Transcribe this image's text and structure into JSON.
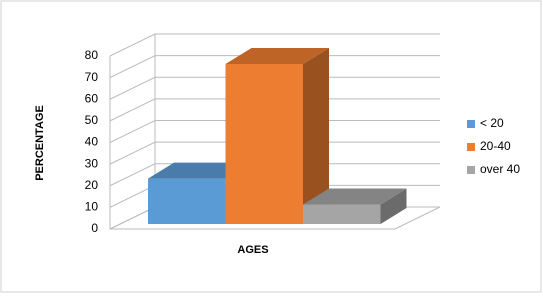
{
  "chart_data": {
    "type": "bar3d",
    "x_label": "AGES",
    "y_label": "PERCENTAGE",
    "categories": [
      null
    ],
    "series": [
      {
        "name": "< 20",
        "color": "#5b9bd5",
        "values": [
          21
        ]
      },
      {
        "name": "20-40",
        "color": "#ed7d31",
        "values": [
          74
        ]
      },
      {
        "name": "over 40",
        "color": "#a5a5a5",
        "values": [
          9
        ]
      }
    ],
    "ylim": [
      0,
      80
    ],
    "yticks": [
      0,
      10,
      20,
      30,
      40,
      50,
      60,
      70,
      80
    ],
    "grid": true,
    "legend": "right"
  }
}
